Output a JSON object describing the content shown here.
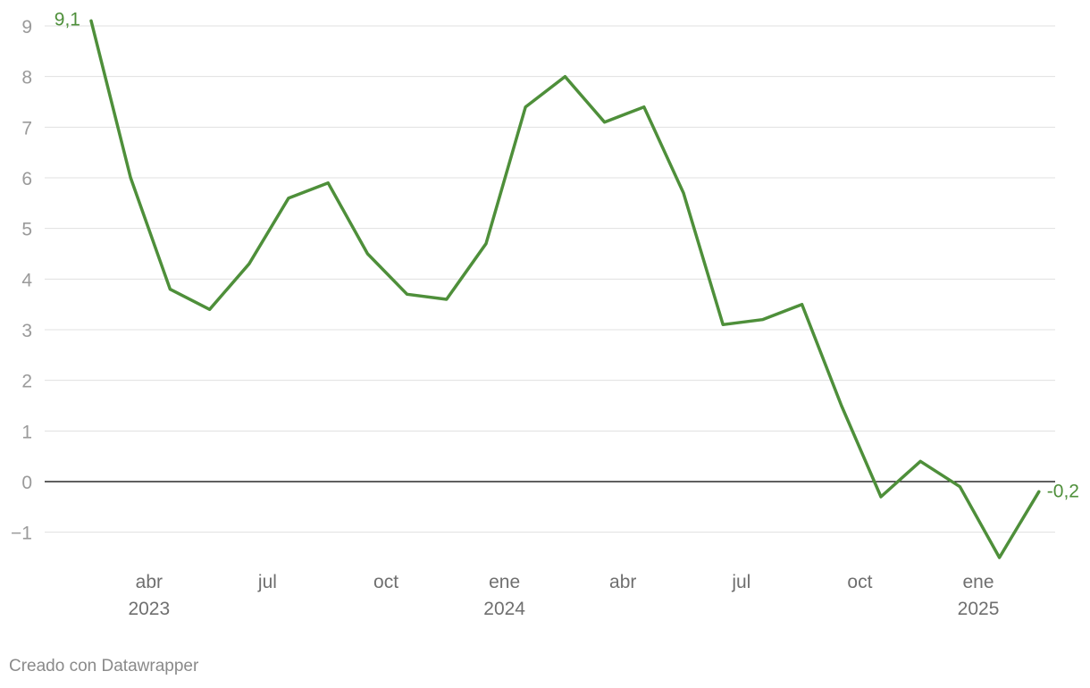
{
  "chart_data": {
    "type": "line",
    "series": [
      {
        "color": "#4e8f3a",
        "points": [
          {
            "x": "2023-02",
            "y": 9.1
          },
          {
            "x": "2023-03",
            "y": 6.0
          },
          {
            "x": "2023-04",
            "y": 3.8
          },
          {
            "x": "2023-05",
            "y": 3.4
          },
          {
            "x": "2023-06",
            "y": 4.3
          },
          {
            "x": "2023-07",
            "y": 5.6
          },
          {
            "x": "2023-08",
            "y": 5.9
          },
          {
            "x": "2023-09",
            "y": 4.5
          },
          {
            "x": "2023-10",
            "y": 3.7
          },
          {
            "x": "2023-11",
            "y": 3.6
          },
          {
            "x": "2023-12",
            "y": 4.7
          },
          {
            "x": "2024-01",
            "y": 7.4
          },
          {
            "x": "2024-02",
            "y": 8.0
          },
          {
            "x": "2024-03",
            "y": 7.1
          },
          {
            "x": "2024-04",
            "y": 7.4
          },
          {
            "x": "2024-05",
            "y": 5.7
          },
          {
            "x": "2024-06",
            "y": 3.1
          },
          {
            "x": "2024-07",
            "y": 3.2
          },
          {
            "x": "2024-08",
            "y": 3.5
          },
          {
            "x": "2024-09",
            "y": 1.5
          },
          {
            "x": "2024-10",
            "y": -0.3
          },
          {
            "x": "2024-11",
            "y": 0.4
          },
          {
            "x": "2024-12",
            "y": -0.1
          },
          {
            "x": "2025-01",
            "y": -1.5
          },
          {
            "x": "2025-02",
            "y": -0.2
          }
        ]
      }
    ],
    "ylim": [
      -1.6,
      9.3
    ],
    "yticks": [
      9,
      8,
      7,
      6,
      5,
      4,
      3,
      2,
      1,
      0,
      -1
    ],
    "ytick_labels": [
      "9",
      "8",
      "7",
      "6",
      "5",
      "4",
      "3",
      "2",
      "1",
      "0",
      "−1"
    ],
    "xticks": [
      {
        "x": "2023-03-15",
        "label": "abr",
        "year": "2023"
      },
      {
        "x": "2023-06-15",
        "label": "jul",
        "year": ""
      },
      {
        "x": "2023-09-15",
        "label": "oct",
        "year": ""
      },
      {
        "x": "2023-12-15",
        "label": "ene",
        "year": "2024"
      },
      {
        "x": "2024-03-15",
        "label": "abr",
        "year": ""
      },
      {
        "x": "2024-06-15",
        "label": "jul",
        "year": ""
      },
      {
        "x": "2024-09-15",
        "label": "oct",
        "year": ""
      },
      {
        "x": "2024-12-15",
        "label": "ene",
        "year": "2025"
      }
    ],
    "start_label": "9,1",
    "end_label": "-0,2",
    "grid": true,
    "zero_line_color": "#000000"
  },
  "footer": {
    "credit": "Creado con Datawrapper"
  }
}
